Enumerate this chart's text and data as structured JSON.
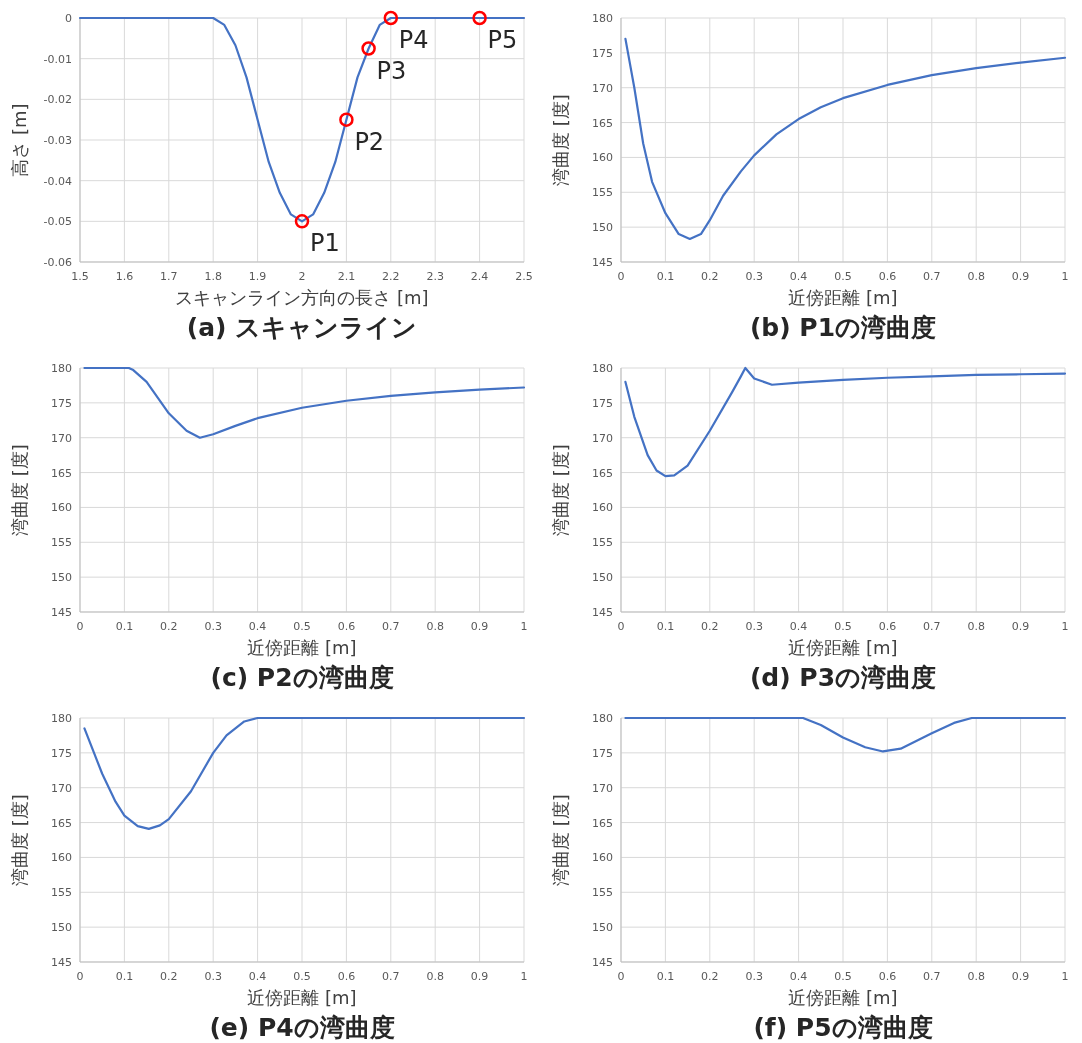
{
  "chart_data": [
    {
      "type": "line",
      "title": "(a) スキャンライン",
      "xlabel": "スキャンライン方向の長さ [m]",
      "ylabel": "高さ [m]",
      "xlim": [
        1.5,
        2.5
      ],
      "ylim": [
        -0.06,
        0
      ],
      "xticks": [
        1.5,
        1.6,
        1.7,
        1.8,
        1.9,
        2,
        2.1,
        2.2,
        2.3,
        2.4,
        2.5
      ],
      "yticks": [
        -0.06,
        -0.05,
        -0.04,
        -0.03,
        -0.02,
        -0.01,
        0
      ],
      "grid": true,
      "series": [
        {
          "type": "line",
          "color": "#4472c4",
          "x": [
            1.5,
            1.8,
            1.825,
            1.85,
            1.875,
            1.9,
            1.925,
            1.95,
            1.975,
            2.0,
            2.025,
            2.05,
            2.075,
            2.1,
            2.125,
            2.15,
            2.175,
            2.2,
            2.5
          ],
          "values": [
            0,
            0,
            -0.0017,
            -0.0067,
            -0.0146,
            -0.025,
            -0.0354,
            -0.043,
            -0.0483,
            -0.05,
            -0.0483,
            -0.043,
            -0.0354,
            -0.025,
            -0.0146,
            -0.0075,
            -0.0017,
            0,
            0
          ]
        },
        {
          "type": "scatter",
          "color": "#ff0000",
          "marker": "circle",
          "x": [
            2.0,
            2.1,
            2.15,
            2.2,
            2.4
          ],
          "values": [
            -0.05,
            -0.025,
            -0.0075,
            0,
            0
          ]
        }
      ],
      "annotations": [
        {
          "text": "P1",
          "x": 2.0,
          "y": -0.05
        },
        {
          "text": "P2",
          "x": 2.1,
          "y": -0.025
        },
        {
          "text": "P3",
          "x": 2.15,
          "y": -0.0075
        },
        {
          "text": "P4",
          "x": 2.2,
          "y": 0
        },
        {
          "text": "P5",
          "x": 2.4,
          "y": 0
        }
      ]
    },
    {
      "type": "line",
      "title": "(b) P1の湾曲度",
      "xlabel": "近傍距離 [m]",
      "ylabel": "湾曲度 [度]",
      "xlim": [
        0,
        1
      ],
      "ylim": [
        145,
        180
      ],
      "xticks": [
        0,
        0.1,
        0.2,
        0.3,
        0.4,
        0.5,
        0.6,
        0.7,
        0.8,
        0.9,
        1
      ],
      "yticks": [
        145,
        150,
        155,
        160,
        165,
        170,
        175,
        180
      ],
      "grid": true,
      "x": [
        0.01,
        0.03,
        0.05,
        0.07,
        0.1,
        0.13,
        0.155,
        0.18,
        0.2,
        0.23,
        0.27,
        0.3,
        0.35,
        0.4,
        0.45,
        0.5,
        0.6,
        0.7,
        0.8,
        0.9,
        1.0
      ],
      "series": [
        {
          "type": "line",
          "color": "#4472c4",
          "values": [
            177,
            170,
            162,
            156.5,
            152,
            149,
            148.3,
            149,
            151,
            154.5,
            158,
            160.3,
            163.3,
            165.5,
            167.2,
            168.5,
            170.4,
            171.8,
            172.8,
            173.6,
            174.3
          ]
        }
      ]
    },
    {
      "type": "line",
      "title": "(c) P2の湾曲度",
      "xlabel": "近傍距離 [m]",
      "ylabel": "湾曲度 [度]",
      "xlim": [
        0,
        1
      ],
      "ylim": [
        145,
        180
      ],
      "xticks": [
        0,
        0.1,
        0.2,
        0.3,
        0.4,
        0.5,
        0.6,
        0.7,
        0.8,
        0.9,
        1
      ],
      "yticks": [
        145,
        150,
        155,
        160,
        165,
        170,
        175,
        180
      ],
      "grid": true,
      "x": [
        0.01,
        0.11,
        0.12,
        0.15,
        0.2,
        0.24,
        0.27,
        0.3,
        0.35,
        0.4,
        0.5,
        0.6,
        0.7,
        0.8,
        0.9,
        1.0
      ],
      "series": [
        {
          "type": "line",
          "color": "#4472c4",
          "values": [
            180,
            180,
            179.7,
            178,
            173.5,
            171,
            170,
            170.5,
            171.7,
            172.8,
            174.3,
            175.3,
            176,
            176.5,
            176.9,
            177.2
          ]
        }
      ]
    },
    {
      "type": "line",
      "title": "(d) P3の湾曲度",
      "xlabel": "近傍距離 [m]",
      "ylabel": "湾曲度 [度]",
      "xlim": [
        0,
        1
      ],
      "ylim": [
        145,
        180
      ],
      "xticks": [
        0,
        0.1,
        0.2,
        0.3,
        0.4,
        0.5,
        0.6,
        0.7,
        0.8,
        0.9,
        1
      ],
      "yticks": [
        145,
        150,
        155,
        160,
        165,
        170,
        175,
        180
      ],
      "grid": true,
      "x": [
        0.01,
        0.03,
        0.06,
        0.08,
        0.1,
        0.12,
        0.15,
        0.2,
        0.25,
        0.27,
        0.28,
        0.3,
        0.34,
        0.4,
        0.5,
        0.6,
        0.7,
        0.8,
        0.9,
        1.0
      ],
      "series": [
        {
          "type": "line",
          "color": "#4472c4",
          "values": [
            178,
            173,
            167.5,
            165.3,
            164.5,
            164.6,
            166,
            171,
            176.5,
            178.8,
            180,
            178.5,
            177.6,
            177.9,
            178.3,
            178.6,
            178.8,
            179,
            179.1,
            179.2
          ]
        }
      ]
    },
    {
      "type": "line",
      "title": "(e) P4の湾曲度",
      "xlabel": "近傍距離 [m]",
      "ylabel": "湾曲度 [度]",
      "xlim": [
        0,
        1
      ],
      "ylim": [
        145,
        180
      ],
      "xticks": [
        0,
        0.1,
        0.2,
        0.3,
        0.4,
        0.5,
        0.6,
        0.7,
        0.8,
        0.9,
        1
      ],
      "yticks": [
        145,
        150,
        155,
        160,
        165,
        170,
        175,
        180
      ],
      "grid": true,
      "x": [
        0.01,
        0.05,
        0.08,
        0.1,
        0.13,
        0.155,
        0.18,
        0.2,
        0.25,
        0.3,
        0.33,
        0.37,
        0.4,
        1.0
      ],
      "series": [
        {
          "type": "line",
          "color": "#4472c4",
          "values": [
            178.5,
            172,
            168,
            166,
            164.5,
            164.1,
            164.6,
            165.5,
            169.5,
            175,
            177.5,
            179.5,
            180,
            180
          ]
        }
      ]
    },
    {
      "type": "line",
      "title": "(f) P5の湾曲度",
      "xlabel": "近傍距離 [m]",
      "ylabel": "湾曲度 [度]",
      "xlim": [
        0,
        1
      ],
      "ylim": [
        145,
        180
      ],
      "xticks": [
        0,
        0.1,
        0.2,
        0.3,
        0.4,
        0.5,
        0.6,
        0.7,
        0.8,
        0.9,
        1
      ],
      "yticks": [
        145,
        150,
        155,
        160,
        165,
        170,
        175,
        180
      ],
      "grid": true,
      "x": [
        0.01,
        0.41,
        0.45,
        0.5,
        0.55,
        0.59,
        0.63,
        0.7,
        0.75,
        0.79,
        1.0
      ],
      "series": [
        {
          "type": "line",
          "color": "#4472c4",
          "values": [
            180,
            180,
            179,
            177.2,
            175.8,
            175.2,
            175.6,
            177.8,
            179.3,
            180,
            180
          ]
        }
      ]
    }
  ]
}
